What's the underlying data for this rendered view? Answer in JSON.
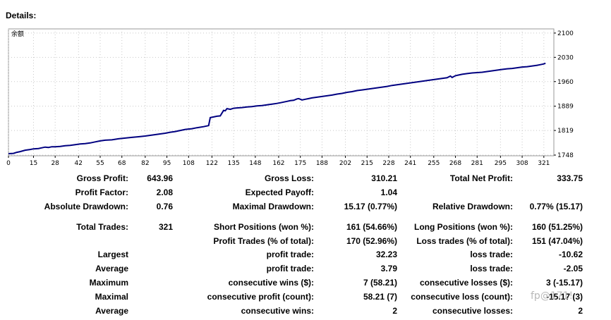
{
  "header": {
    "details_label": "Details:"
  },
  "chart_data": {
    "type": "line",
    "title": "余额",
    "xlabel": "",
    "ylabel": "",
    "xlim": [
      0,
      327
    ],
    "ylim": [
      1746,
      2112
    ],
    "x_ticks": [
      0,
      15,
      28,
      42,
      55,
      68,
      82,
      95,
      108,
      122,
      135,
      148,
      162,
      175,
      188,
      202,
      215,
      228,
      241,
      255,
      268,
      281,
      295,
      308,
      321
    ],
    "y_ticks": [
      1748,
      1819,
      1889,
      1960,
      2030,
      2100
    ],
    "grid": "dotted",
    "series_color": "#000080",
    "series": [
      {
        "x": [
          0,
          3,
          5,
          7,
          10,
          13,
          15,
          18,
          20,
          22,
          24,
          26,
          28,
          31,
          34,
          37,
          40,
          43,
          46,
          49,
          52,
          55,
          58,
          62,
          66,
          70,
          74,
          78,
          82,
          85,
          88,
          91,
          94,
          97,
          100,
          103,
          106,
          110,
          113,
          117,
          120,
          121,
          123,
          125,
          127,
          129,
          130,
          131,
          133,
          135,
          137,
          140,
          143,
          146,
          149,
          152,
          155,
          158,
          161,
          163,
          165,
          167,
          169,
          171,
          173,
          174,
          175,
          176,
          178,
          180,
          182,
          185,
          188,
          191,
          194,
          197,
          200,
          203,
          206,
          209,
          212,
          215,
          218,
          221,
          224,
          227,
          230,
          233,
          236,
          239,
          242,
          245,
          248,
          251,
          254,
          257,
          260,
          263,
          265,
          266,
          268,
          270,
          272,
          275,
          278,
          281,
          284,
          287,
          290,
          293,
          296,
          299,
          302,
          305,
          308,
          311,
          314,
          317,
          319,
          321,
          322
        ],
        "values": [
          1752,
          1753,
          1756,
          1758,
          1762,
          1764,
          1766,
          1767,
          1769,
          1771,
          1770,
          1772,
          1772,
          1773,
          1775,
          1776,
          1778,
          1780,
          1781,
          1783,
          1786,
          1789,
          1791,
          1792,
          1795,
          1797,
          1799,
          1801,
          1803,
          1805,
          1807,
          1809,
          1811,
          1814,
          1816,
          1819,
          1822,
          1824,
          1827,
          1830,
          1833,
          1856,
          1858,
          1860,
          1861,
          1877,
          1876,
          1882,
          1880,
          1883,
          1884,
          1885,
          1887,
          1888,
          1890,
          1891,
          1893,
          1895,
          1897,
          1899,
          1901,
          1903,
          1905,
          1906,
          1910,
          1911,
          1909,
          1907,
          1909,
          1911,
          1913,
          1915,
          1917,
          1919,
          1921,
          1924,
          1926,
          1929,
          1931,
          1934,
          1936,
          1938,
          1940,
          1942,
          1944,
          1946,
          1949,
          1951,
          1953,
          1955,
          1957,
          1959,
          1961,
          1963,
          1965,
          1967,
          1969,
          1971,
          1976,
          1972,
          1977,
          1979,
          1981,
          1983,
          1985,
          1986,
          1987,
          1989,
          1991,
          1993,
          1995,
          1997,
          1998,
          2000,
          2002,
          2003,
          2005,
          2007,
          2009,
          2011,
          2013
        ]
      }
    ]
  },
  "stats": {
    "gross_profit_label": "Gross Profit:",
    "gross_profit_value": "643.96",
    "gross_loss_label": "Gross Loss:",
    "gross_loss_value": "310.21",
    "total_net_profit_label": "Total Net Profit:",
    "total_net_profit_value": "333.75",
    "profit_factor_label": "Profit Factor:",
    "profit_factor_value": "2.08",
    "expected_payoff_label": "Expected Payoff:",
    "expected_payoff_value": "1.04",
    "absolute_drawdown_label": "Absolute Drawdown:",
    "absolute_drawdown_value": "0.76",
    "maximal_drawdown_label": "Maximal Drawdown:",
    "maximal_drawdown_value": "15.17 (0.77%)",
    "relative_drawdown_label": "Relative Drawdown:",
    "relative_drawdown_value": "0.77% (15.17)",
    "total_trades_label": "Total Trades:",
    "total_trades_value": "321",
    "short_positions_label": "Short Positions (won %):",
    "short_positions_value": "161 (54.66%)",
    "long_positions_label": "Long Positions (won %):",
    "long_positions_value": "160 (51.25%)",
    "profit_trades_label": "Profit Trades (% of total):",
    "profit_trades_value": "170 (52.96%)",
    "loss_trades_label": "Loss trades (% of total):",
    "loss_trades_value": "151 (47.04%)",
    "largest_label": "Largest",
    "largest_profit_label": "profit trade:",
    "largest_profit_value": "32.23",
    "largest_loss_label": "loss trade:",
    "largest_loss_value": "-10.62",
    "average_label": "Average",
    "average_profit_label": "profit trade:",
    "average_profit_value": "3.79",
    "average_loss_label": "loss trade:",
    "average_loss_value": "-2.05",
    "maximum_label": "Maximum",
    "max_consec_wins_label": "consecutive wins ($):",
    "max_consec_wins_value": "7 (58.21)",
    "max_consec_losses_label": "consecutive losses ($):",
    "max_consec_losses_value": "3 (-15.17)",
    "maximal_label": "Maximal",
    "maximal_consec_profit_label": "consecutive profit (count):",
    "maximal_consec_profit_value": "58.21 (7)",
    "maximal_consec_loss_label": "consecutive loss (count):",
    "maximal_consec_loss_value": "-15.17 (3)",
    "average2_label": "Average",
    "avg_consec_wins_label": "consecutive wins:",
    "avg_consec_wins_value": "2",
    "avg_consec_losses_label": "consecutive losses:",
    "avg_consec_losses_value": "2"
  },
  "watermark": {
    "text": "fp@171!"
  }
}
